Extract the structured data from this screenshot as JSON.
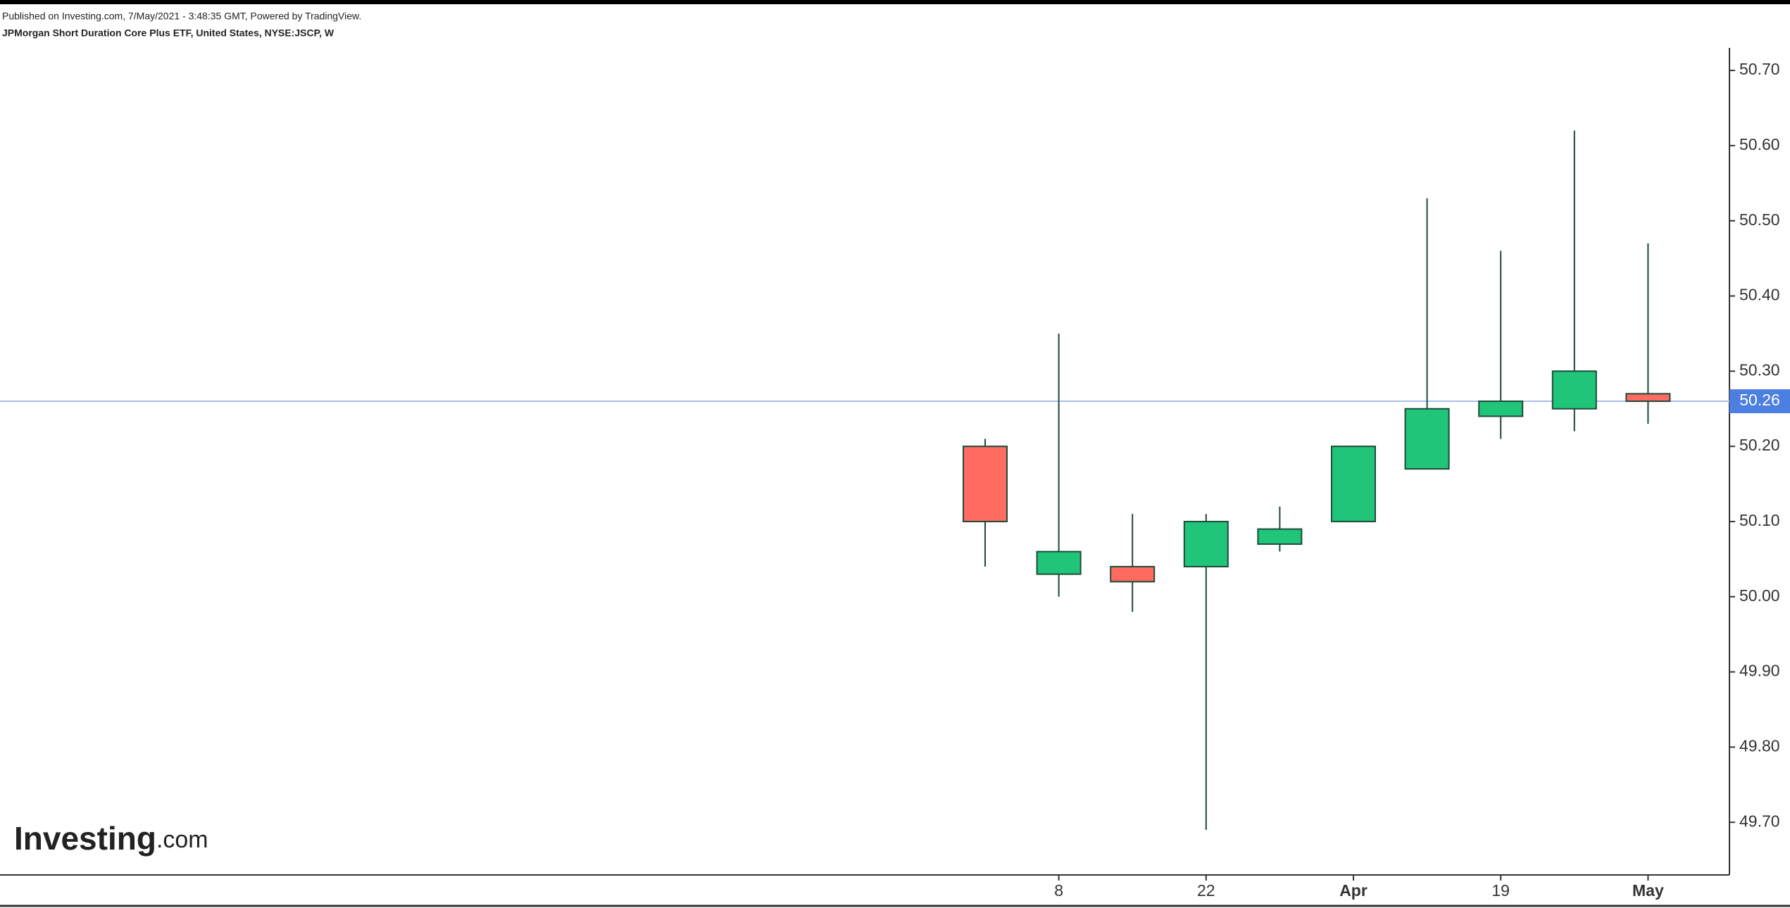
{
  "header": {
    "published": "Published on Investing.com, 7/May/2021 - 3:48:35 GMT, Powered by TradingView.",
    "symbol": "JPMorgan Short Duration Core Plus ETF, United States, NYSE:JSCP, W"
  },
  "logo": {
    "brand": "Investing",
    "suffix": ".com"
  },
  "chart_data": {
    "type": "candlestick",
    "categories": [
      null,
      "8",
      null,
      "22",
      null,
      "Apr",
      null,
      "19",
      null,
      "May"
    ],
    "open": [
      50.2,
      50.03,
      50.04,
      50.04,
      50.07,
      50.1,
      50.17,
      50.24,
      50.25,
      50.27
    ],
    "high": [
      50.21,
      50.35,
      50.11,
      50.11,
      50.12,
      50.2,
      50.53,
      50.46,
      50.62,
      50.47
    ],
    "low": [
      50.04,
      50.0,
      49.98,
      49.69,
      50.06,
      50.1,
      50.17,
      50.21,
      50.22,
      50.23
    ],
    "close": [
      50.1,
      50.06,
      50.02,
      50.1,
      50.09,
      50.2,
      50.25,
      50.26,
      50.3,
      50.26
    ],
    "up_color": "#20c57a",
    "down_color": "#ff6a61",
    "wick_color": "#1d4a38",
    "last_price": 50.26,
    "last_price_color": "#4c7fdf",
    "ylim": [
      49.63,
      50.73
    ],
    "yticks": [
      {
        "value": 49.7,
        "label": "49.70"
      },
      {
        "value": 49.8,
        "label": "49.80"
      },
      {
        "value": 49.9,
        "label": "49.90"
      },
      {
        "value": 50.0,
        "label": "50.00"
      },
      {
        "value": 50.1,
        "label": "50.10"
      },
      {
        "value": 50.2,
        "label": "50.20"
      },
      {
        "value": 50.3,
        "label": "50.30"
      },
      {
        "value": 50.4,
        "label": "50.40"
      },
      {
        "value": 50.5,
        "label": "50.50"
      },
      {
        "value": 50.6,
        "label": "50.60"
      },
      {
        "value": 50.7,
        "label": "50.70"
      }
    ]
  }
}
